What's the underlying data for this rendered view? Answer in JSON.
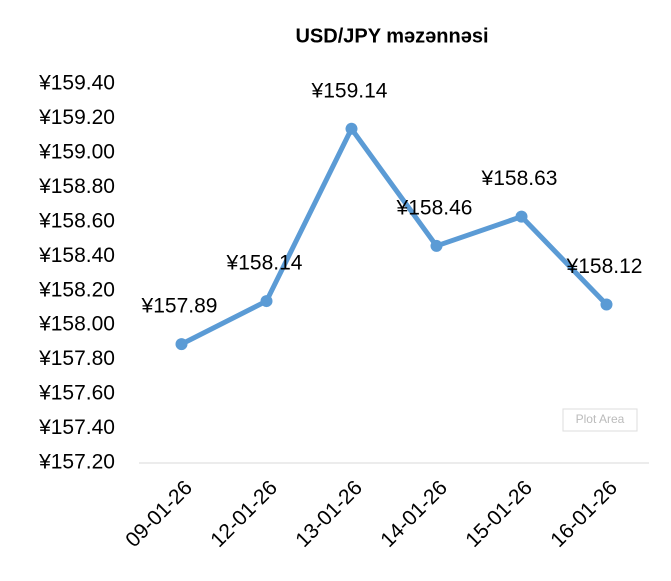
{
  "chart_data": {
    "type": "line",
    "title": "USD/JPY məzənnəsi",
    "categories": [
      "09-01-26",
      "12-01-26",
      "13-01-26",
      "14-01-26",
      "15-01-26",
      "16-01-26"
    ],
    "series": [
      {
        "name": "USD/JPY",
        "color": "#5b9bd5",
        "values": [
          157.89,
          158.14,
          159.14,
          158.46,
          158.63,
          158.12
        ],
        "value_labels": [
          "¥157.89",
          "¥158.14",
          "¥159.14",
          "¥158.46",
          "¥158.63",
          "¥158.12"
        ]
      }
    ],
    "ylim": [
      157.2,
      159.4
    ],
    "yticks": [
      {
        "value": 157.2,
        "label": "¥157.20"
      },
      {
        "value": 157.4,
        "label": "¥157.40"
      },
      {
        "value": 157.6,
        "label": "¥157.60"
      },
      {
        "value": 157.8,
        "label": "¥157.80"
      },
      {
        "value": 158.0,
        "label": "¥158.00"
      },
      {
        "value": 158.2,
        "label": "¥158.20"
      },
      {
        "value": 158.4,
        "label": "¥158.40"
      },
      {
        "value": 158.6,
        "label": "¥158.60"
      },
      {
        "value": 158.8,
        "label": "¥158.80"
      },
      {
        "value": 159.0,
        "label": "¥159.00"
      },
      {
        "value": 159.2,
        "label": "¥159.20"
      },
      {
        "value": 159.4,
        "label": "¥159.40"
      }
    ],
    "grid": false,
    "annotation": "Plot Area"
  }
}
